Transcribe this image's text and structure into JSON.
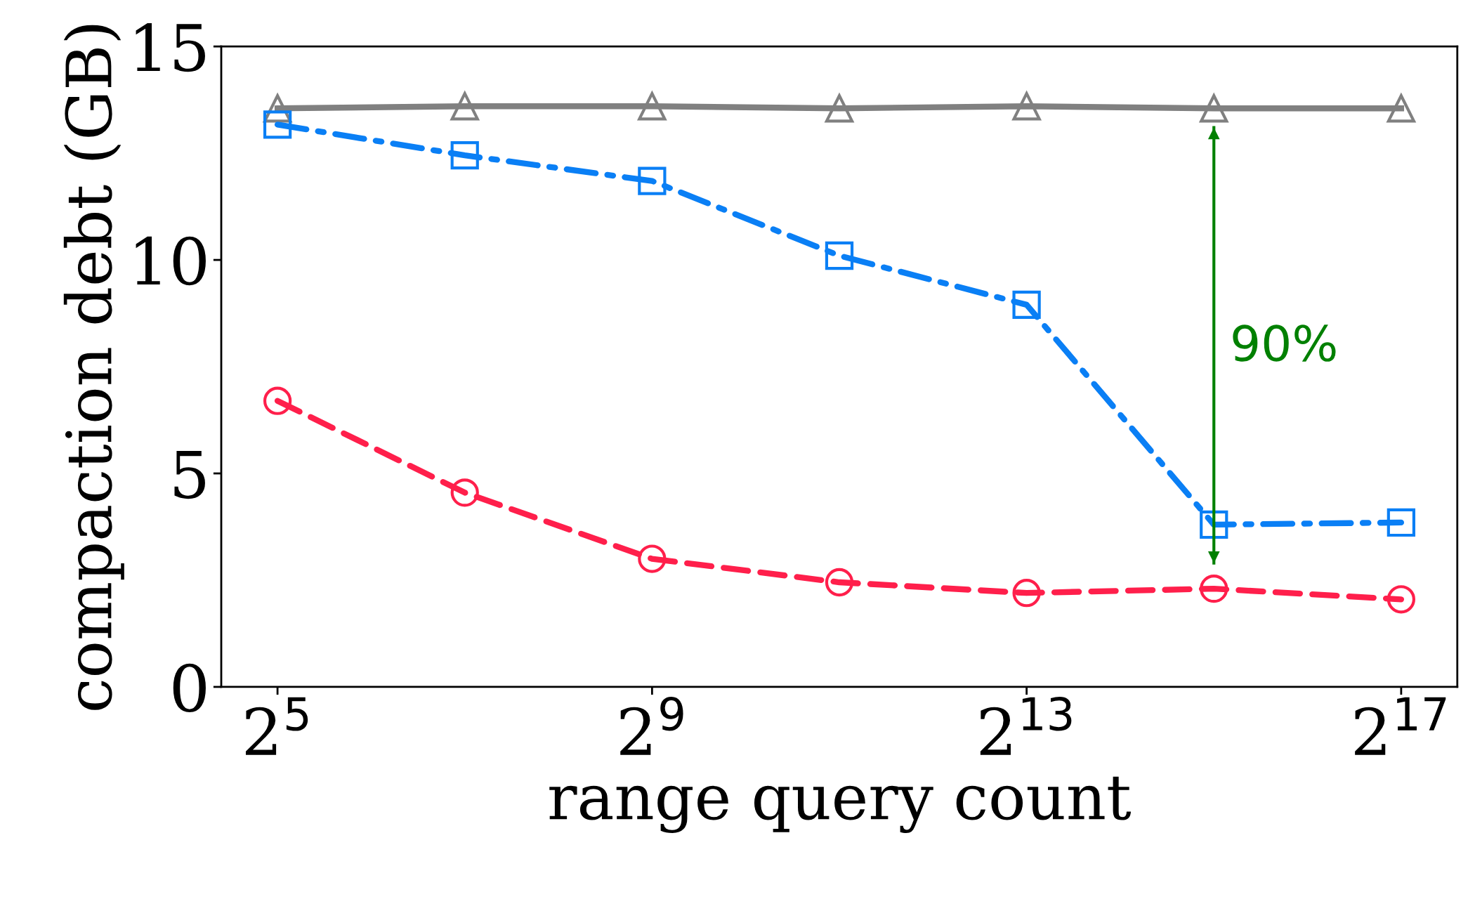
{
  "chart_data": {
    "type": "line",
    "xlabel": "range query count",
    "ylabel": "compaction debt (GB)",
    "log": "x",
    "x": [
      32,
      128,
      512,
      2048,
      8192,
      32768,
      131072
    ],
    "series": [
      {
        "color": "#808080",
        "marker": "triangle",
        "line_style": "solid",
        "values": [
          13.55,
          13.6,
          13.6,
          13.55,
          13.6,
          13.55,
          13.55
        ]
      },
      {
        "color": "#0a7ff5",
        "marker": "square",
        "line_style": "dashdot",
        "values": [
          13.17,
          12.45,
          11.85,
          10.1,
          8.95,
          3.8,
          3.85
        ]
      },
      {
        "color": "#ff1f4b",
        "marker": "circle",
        "line_style": "dashed",
        "values": [
          6.7,
          4.55,
          3.0,
          2.45,
          2.2,
          2.3,
          2.05
        ]
      },
      {
        "type": "line",
        "x": [
          32768,
          32768
        ],
        "color": "#008000",
        "line_style": "solid",
        "values": [
          2.9,
          13.1
        ]
      }
    ],
    "xlim": [
      21.1,
      198600
    ],
    "xticks": [
      {
        "value": 32,
        "label": "2$^{5}$"
      },
      {
        "value": 512,
        "label": "2$^{9}$"
      },
      {
        "value": 8192,
        "label": "2$^{13}$"
      },
      {
        "value": 131072,
        "label": "2$^{17}$"
      }
    ],
    "ylim": [
      0,
      15
    ],
    "yticks": [
      0,
      5,
      10,
      15
    ],
    "grid": false,
    "legend": false,
    "annotations": [
      "90%"
    ]
  }
}
